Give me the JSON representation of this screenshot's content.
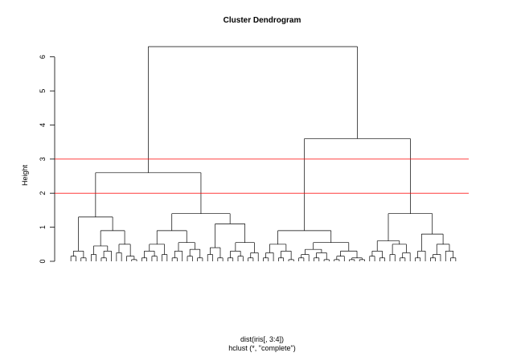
{
  "chart_data": {
    "type": "dendrogram",
    "title": "Cluster Dendrogram",
    "y_label": "Height",
    "x_label": [
      "dist(iris[, 3:4])",
      "hclust (*, \"complete\")"
    ],
    "ylim": [
      0,
      6.3
    ],
    "yticks": [
      0,
      1,
      2,
      3,
      4,
      5,
      6
    ],
    "color": "#000000",
    "hlines": [
      {
        "value": 3,
        "color": "#ff0000"
      },
      {
        "value": 2,
        "color": "#ff0000"
      }
    ],
    "tree": [
      6.3,
      [
        2.6,
        [
          1.3,
          [
            0.3,
            [
              0.15,
              0,
              0
            ],
            [
              0.1,
              0,
              0
            ]
          ],
          [
            0.9,
            [
              0.45,
              [
                0.2,
                0,
                0
              ],
              [
                0.3,
                [
                  0.1,
                  0,
                  0
                ],
                0
              ]
            ],
            [
              0.5,
              [
                0.25,
                0,
                0
              ],
              [
                0.15,
                0,
                [
                  0.05,
                  0,
                  0
                ]
              ]
            ]
          ]
        ],
        [
          1.4,
          [
            0.9,
            [
              0.5,
              [
                0.3,
                [
                  0.1,
                  0,
                  0
                ],
                [
                  0.15,
                  0,
                  0
                ]
              ],
              [
                0.2,
                0,
                0
              ]
            ],
            [
              0.55,
              [
                0.3,
                [
                  0.1,
                  0,
                  0
                ],
                0
              ],
              [
                0.35,
                [
                  0.15,
                  0,
                  0
                ],
                [
                  0.1,
                  0,
                  0
                ]
              ]
            ]
          ],
          [
            1.1,
            [
              0.4,
              [
                0.2,
                0,
                0
              ],
              [
                0.1,
                0,
                0
              ]
            ],
            [
              0.55,
              [
                0.3,
                [
                  0.1,
                  0,
                  0
                ],
                [
                  0.15,
                  0,
                  0
                ]
              ],
              [
                0.25,
                [
                  0.1,
                  0,
                  0
                ],
                0
              ]
            ]
          ]
        ]
      ],
      [
        3.6,
        [
          0.9,
          [
            0.5,
            [
              0.25,
              [
                0.1,
                0,
                0
              ],
              0
            ],
            [
              0.3,
              [
                0.1,
                0,
                0
              ],
              [
                0.05,
                0,
                0
              ]
            ]
          ],
          [
            0.55,
            [
              0.35,
              [
                0.2,
                [
                  0.1,
                  0,
                  0
                ],
                0
              ],
              [
                0.25,
                [
                  0.1,
                  0,
                  0
                ],
                [
                  0.05,
                  0,
                  0
                ]
              ]
            ],
            [
              0.3,
              [
                0.15,
                [
                  0.05,
                  0,
                  0
                ],
                0
              ],
              [
                0.1,
                [
                  0.05,
                  0,
                  0
                ],
                [
                  0.05,
                  0,
                  0
                ]
              ]
            ]
          ]
        ],
        [
          1.4,
          [
            0.6,
            [
              0.3,
              [
                0.15,
                0,
                0
              ],
              [
                0.1,
                0,
                0
              ]
            ],
            [
              0.5,
              [
                0.2,
                0,
                0
              ],
              [
                0.25,
                [
                  0.1,
                  0,
                  0
                ],
                0
              ]
            ]
          ],
          [
            0.8,
            [
              0.3,
              [
                0.1,
                0,
                0
              ],
              0
            ],
            [
              0.5,
              [
                0.2,
                [
                  0.1,
                  0,
                  0
                ],
                0
              ],
              [
                0.3,
                0,
                [
                  0.1,
                  0,
                  0
                ]
              ]
            ]
          ]
        ]
      ]
    ]
  }
}
